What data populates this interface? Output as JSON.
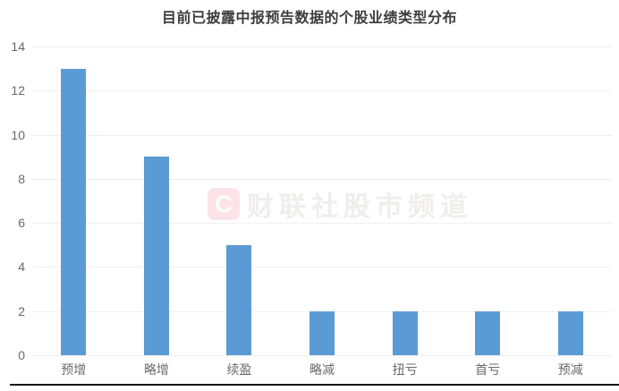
{
  "chart_data": {
    "type": "bar",
    "title": "目前已披露中报预告数据的个股业绩类型分布",
    "categories": [
      "预增",
      "略增",
      "续盈",
      "略减",
      "扭亏",
      "首亏",
      "预减"
    ],
    "values": [
      13,
      9,
      5,
      2,
      2,
      2,
      2
    ],
    "xlabel": "",
    "ylabel": "",
    "ylim": [
      0,
      14
    ],
    "yticks": [
      0,
      2,
      4,
      6,
      8,
      10,
      12,
      14
    ],
    "grid": "horizontal-only",
    "legend_position": "none",
    "bar_color": "#5b9bd5"
  },
  "watermark": {
    "logo_letter": "C",
    "text": "财联社股市频道",
    "logo_bg": "#fbe3e6",
    "logo_fg": "#ffffff",
    "text_color": "#f0eded"
  },
  "colors": {
    "title": "#3d3d3d",
    "axis_label": "#6a6a6a",
    "gridline": "#f0f0f0",
    "bottom_rule": "#161616"
  }
}
